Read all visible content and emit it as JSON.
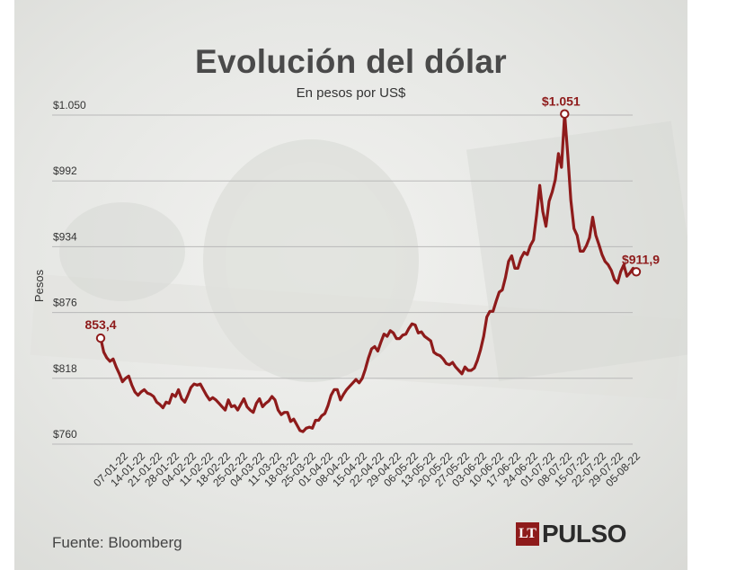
{
  "header": {
    "title": "Evolución del dólar",
    "subtitle": "En pesos por US$"
  },
  "footer": {
    "source": "Fuente: Bloomberg",
    "logo_mark": "LT",
    "logo_text": "PULSO"
  },
  "colors": {
    "line": "#8e1b1b",
    "grid": "#b9b9b9",
    "text": "#333333"
  },
  "chart_data": {
    "type": "line",
    "title": "Evolución del dólar",
    "subtitle": "En pesos por US$",
    "ylabel": "Pesos",
    "xlabel": "",
    "ylim": [
      760,
      1050
    ],
    "yticks": [
      {
        "value": 760,
        "label": "$760"
      },
      {
        "value": 818,
        "label": "$818"
      },
      {
        "value": 876,
        "label": "$876"
      },
      {
        "value": 934,
        "label": "$934"
      },
      {
        "value": 992,
        "label": "$992"
      },
      {
        "value": 1050,
        "label": "$1.050"
      }
    ],
    "grid": true,
    "xtick_labels": [
      "07-01-22",
      "14-01-22",
      "21-01-22",
      "28-01-22",
      "04-02-22",
      "11-02-22",
      "18-02-22",
      "25-02-22",
      "04-03-22",
      "11-03-22",
      "18-03-22",
      "25-03-22",
      "01-04-22",
      "08-04-22",
      "15-04-22",
      "22-04-22",
      "29-04-22",
      "06-05-22",
      "13-05-22",
      "20-05-22",
      "27-05-22",
      "03-06-22",
      "10-06-22",
      "17-06-22",
      "24-06-22",
      "01-07-22",
      "08-07-22",
      "15-07-22",
      "22-07-22",
      "29-07-22",
      "05-08-22"
    ],
    "series": [
      {
        "values": [
          853.4,
          841,
          836,
          833,
          835,
          828,
          822,
          815,
          818,
          820,
          812,
          806,
          803,
          806,
          808,
          805,
          804,
          802,
          797,
          795,
          792,
          797,
          796,
          804,
          802,
          808,
          800,
          797,
          803,
          810,
          813,
          812,
          813,
          808,
          803,
          799,
          801,
          799,
          796,
          793,
          790,
          799,
          793,
          794,
          790,
          795,
          800,
          793,
          790,
          788,
          796,
          800,
          793,
          796,
          798,
          802,
          799,
          790,
          786,
          788,
          788,
          780,
          782,
          777,
          772,
          771,
          774,
          775,
          774,
          781,
          781,
          785,
          787,
          794,
          803,
          808,
          808,
          799,
          804,
          808,
          811,
          814,
          817,
          814,
          818,
          826,
          836,
          844,
          846,
          842,
          850,
          857,
          855,
          860,
          858,
          853,
          853,
          856,
          857,
          862,
          866,
          865,
          858,
          859,
          855,
          853,
          851,
          841,
          839,
          838,
          835,
          831,
          830,
          832,
          828,
          825,
          822,
          828,
          825,
          825,
          827,
          834,
          843,
          855,
          872,
          877,
          877,
          886,
          894,
          896,
          907,
          921,
          926,
          915,
          915,
          924,
          929,
          927,
          935,
          940,
          962,
          988,
          965,
          952,
          974,
          982,
          993,
          1016,
          1004,
          1051,
          1015,
          975,
          950,
          944,
          930,
          930,
          935,
          942,
          960,
          944,
          936,
          927,
          921,
          918,
          913,
          905,
          902,
          912,
          918,
          908,
          911,
          915,
          911.9
        ]
      }
    ],
    "annotations": [
      {
        "label": "853,4",
        "point": "first"
      },
      {
        "label": "$1.051",
        "point": "max"
      },
      {
        "label": "$911,9",
        "point": "last"
      }
    ]
  }
}
